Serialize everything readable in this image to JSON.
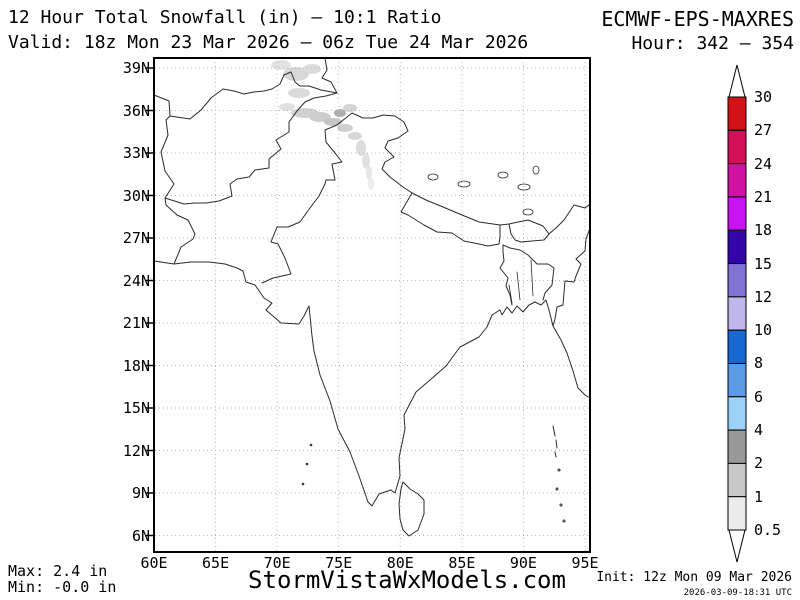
{
  "header": {
    "title": "12 Hour Total Snowfall (in) – 10:1 Ratio",
    "valid": "Valid: 18z Mon 23 Mar 2026 – 06z Tue 24 Mar 2026",
    "model": "ECMWF-EPS-MAXRES",
    "hour": "Hour: 342 – 354"
  },
  "map": {
    "lat_labels": [
      "39N",
      "36N",
      "33N",
      "30N",
      "27N",
      "24N",
      "21N",
      "18N",
      "15N",
      "12N",
      "9N",
      "6N"
    ],
    "lon_labels": [
      "60E",
      "65E",
      "70E",
      "75E",
      "80E",
      "85E",
      "90E",
      "95E"
    ]
  },
  "colorbar": {
    "tick_labels": [
      "30",
      "27",
      "24",
      "21",
      "18",
      "15",
      "12",
      "10",
      "8",
      "6",
      "4",
      "2",
      "1",
      "0.5"
    ],
    "segment_colors": [
      "#d11217",
      "#d01159",
      "#ce12a2",
      "#c613ef",
      "#3305a8",
      "#8273d6",
      "#c0b8ea",
      "#1768d1",
      "#5b9be6",
      "#9dd1f7",
      "#999999",
      "#c8c8c8",
      "#ebebeb"
    ]
  },
  "footer": {
    "max": "Max: 2.4 in",
    "min": "Min: -0.0 in",
    "watermark": "StormVistaWxModels.com",
    "init": "Init: 12z Mon 09 Mar 2026",
    "generated": "2026-03-09-18:31 UTC"
  }
}
